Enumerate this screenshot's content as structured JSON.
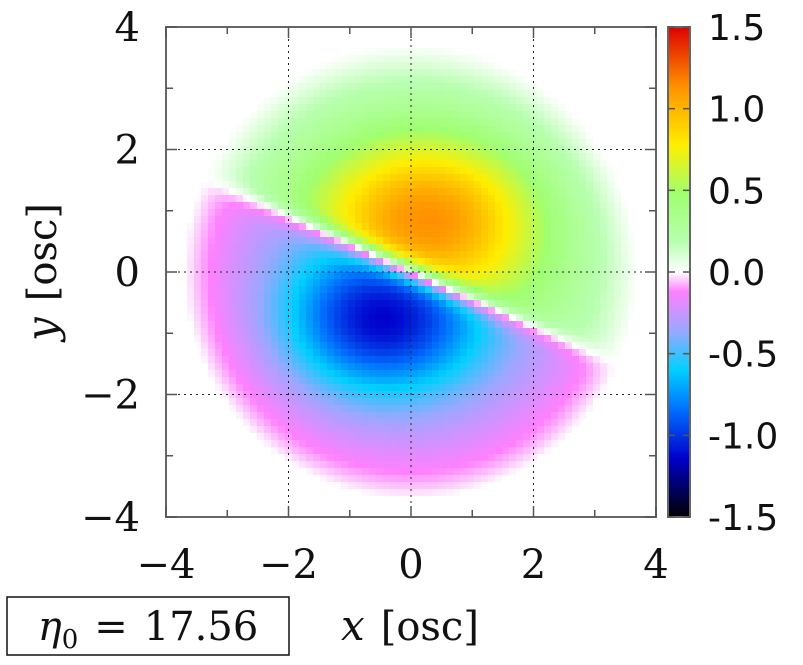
{
  "chart_data": {
    "type": "heatmap",
    "title": "",
    "xlabel": {
      "symbol": "x",
      "unit": "[osc]"
    },
    "ylabel": {
      "symbol": "y",
      "unit": "[osc]"
    },
    "xlim": [
      -4,
      4
    ],
    "ylim": [
      -4,
      4
    ],
    "x_ticks": [
      -4,
      -2,
      0,
      2,
      4
    ],
    "y_ticks": [
      -4,
      -2,
      0,
      2,
      4
    ],
    "x_tick_labels": [
      "−4",
      "−2",
      "0",
      "2",
      "4"
    ],
    "y_tick_labels": [
      "−4",
      "−2",
      "0",
      "2",
      "4"
    ],
    "grid": true,
    "colorbar": {
      "range": [
        -1.5,
        1.5
      ],
      "tick_labels": [
        "1.5",
        "1.0",
        "0.5",
        "0.0",
        "-0.5",
        "-1.0",
        "-1.5"
      ],
      "tick_values": [
        1.5,
        1.0,
        0.5,
        0.0,
        -0.5,
        -1.0,
        -1.5
      ]
    },
    "field": {
      "description_kind": "dipole-like lobes separated by tilted nodal line",
      "positive_peak": {
        "x": 0.3,
        "y": 0.9,
        "value": 1.05
      },
      "negative_peak": {
        "x": -0.5,
        "y": -0.8,
        "value": -1.05
      },
      "nodal_line_slope": -0.45,
      "envelope_radius_x": 3.7,
      "envelope_radius_y": 3.7
    },
    "annotation": {
      "symbol": "η",
      "subscript": "0",
      "equals": "=",
      "value": "17.56"
    }
  }
}
